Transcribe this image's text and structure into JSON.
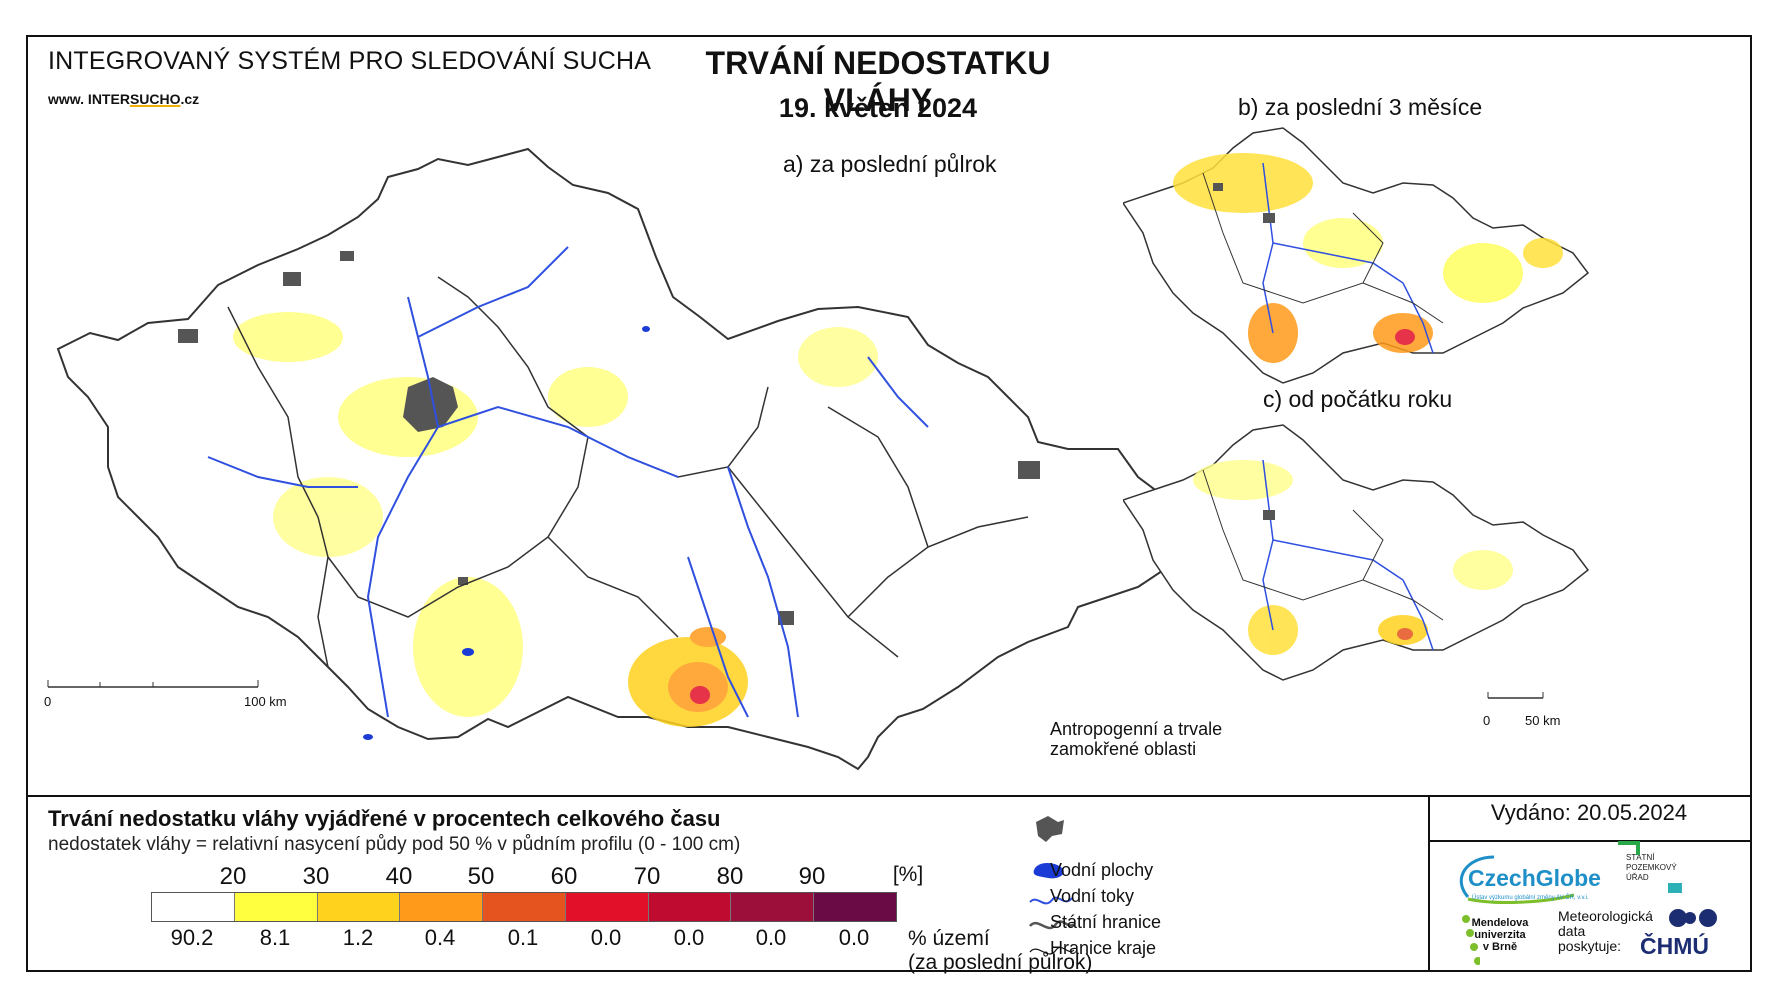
{
  "header": {
    "system_title": "INTEGROVANÝ SYSTÉM PRO SLEDOVÁNÍ SUCHA",
    "website_prefix": "www. INTER",
    "website_highlight": "SUCHO",
    "website_suffix": ".cz",
    "main_title": "TRVÁNÍ NEDOSTATKU VLÁHY",
    "date": "19. květen 2024"
  },
  "maps": {
    "a_label": "a) za poslední půlrok",
    "b_label": "b) za poslední 3 měsíce",
    "c_label": "c) od počátku roku",
    "scale_main": {
      "start": "0",
      "end": "100 km"
    },
    "scale_small": {
      "start": "0",
      "end": "50 km"
    }
  },
  "legend": {
    "title": "Trvání nedostatku vláhy vyjádřené v procentech celkového času",
    "subtitle": "nedostatek vláhy = relativní nasycení půdy pod 50 % v půdním profilu (0 - 100 cm)",
    "unit": "[%]",
    "thresholds": [
      "20",
      "30",
      "40",
      "50",
      "60",
      "70",
      "80",
      "90"
    ],
    "colors": [
      "#ffffff",
      "#ffff40",
      "#ffd21e",
      "#ff9a1a",
      "#e5531f",
      "#e3102a",
      "#c00b30",
      "#9b0f3a",
      "#6b0b45"
    ],
    "territory_percent": [
      "90.2",
      "8.1",
      "1.2",
      "0.4",
      "0.1",
      "0.0",
      "0.0",
      "0.0",
      "0.0"
    ],
    "territory_label_line1": "% území",
    "territory_label_line2": "(za poslední půlrok)"
  },
  "symbols": {
    "anthropogenic_line1": "Antropogenní a trvale",
    "anthropogenic_line2": "zamokřené oblasti",
    "water_bodies": "Vodní plochy",
    "rivers": "Vodní toky",
    "state_border": "Státní hranice",
    "region_border": "Hranice kraje"
  },
  "footer": {
    "issued": "Vydáno: 20.05.2024",
    "czechglobe": "CzechGlobe",
    "czechglobe_sub": "Ústav výzkumu globální změny AV ČR, v.v.i.",
    "spu_line1": "STÁTNÍ",
    "spu_line2": "POZEMKOVÝ",
    "spu_line3": "ÚŘAD",
    "mendel_line1": "Mendelova",
    "mendel_line2": "univerzita",
    "mendel_line3": "v Brně",
    "meteo_line1": "Meteorologická",
    "meteo_line2": "data",
    "meteo_line3": "poskytuje:",
    "chmu": "ČHMÚ"
  }
}
